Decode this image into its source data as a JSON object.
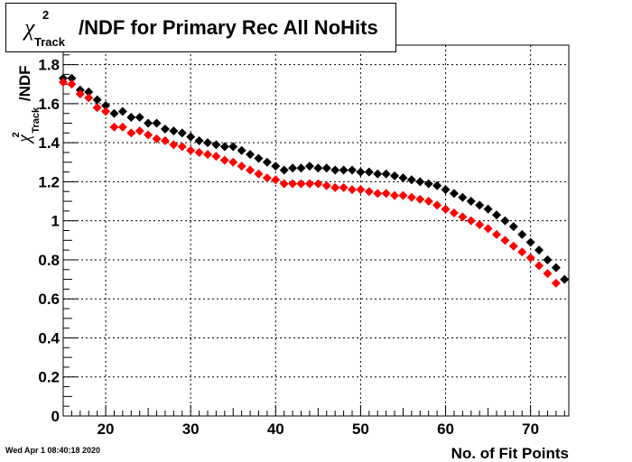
{
  "title": {
    "symbol": "χ",
    "superscript": "2",
    "subscript": "Track",
    "text": "/NDF for Primary Rec All NoHits"
  },
  "timestamp": "Wed Apr  1 08:40:18 2020",
  "chart_data": {
    "type": "scatter",
    "xlabel": "No. of Fit Points",
    "ylabel": {
      "symbol": "χ",
      "superscript": "2",
      "subscript": "Track",
      "text": "/NDF"
    },
    "xlim": [
      15,
      74.5
    ],
    "ylim": [
      0,
      1.9
    ],
    "x_ticks": [
      20,
      30,
      40,
      50,
      60,
      70
    ],
    "y_ticks": [
      0,
      0.2,
      0.4,
      0.6,
      0.8,
      1,
      1.2,
      1.4,
      1.6,
      1.8
    ],
    "y_tick_labels": [
      "0",
      "0.2",
      "0.4",
      "0.6",
      "0.8",
      "1",
      "1.2",
      "1.4",
      "1.6",
      "1.8"
    ],
    "grid": true,
    "series": [
      {
        "color": "#000000",
        "x": [
          15,
          16,
          17,
          18,
          19,
          20,
          21,
          22,
          23,
          24,
          25,
          26,
          27,
          28,
          29,
          30,
          31,
          32,
          33,
          34,
          35,
          36,
          37,
          38,
          39,
          40,
          41,
          42,
          43,
          44,
          45,
          46,
          47,
          48,
          49,
          50,
          51,
          52,
          53,
          54,
          55,
          56,
          57,
          58,
          59,
          60,
          61,
          62,
          63,
          64,
          65,
          66,
          67,
          68,
          69,
          70,
          71,
          72,
          73,
          74
        ],
        "y": [
          1.73,
          1.73,
          1.67,
          1.66,
          1.62,
          1.59,
          1.55,
          1.56,
          1.53,
          1.53,
          1.5,
          1.5,
          1.47,
          1.46,
          1.45,
          1.43,
          1.41,
          1.4,
          1.39,
          1.38,
          1.38,
          1.36,
          1.34,
          1.32,
          1.3,
          1.28,
          1.26,
          1.27,
          1.27,
          1.28,
          1.27,
          1.27,
          1.26,
          1.26,
          1.26,
          1.25,
          1.25,
          1.24,
          1.24,
          1.23,
          1.22,
          1.21,
          1.2,
          1.19,
          1.18,
          1.16,
          1.14,
          1.12,
          1.1,
          1.08,
          1.06,
          1.03,
          1.0,
          0.97,
          0.93,
          0.89,
          0.85,
          0.8,
          0.76,
          0.7
        ]
      },
      {
        "color": "#ff0000",
        "x": [
          15,
          16,
          17,
          18,
          19,
          20,
          21,
          22,
          23,
          24,
          25,
          26,
          27,
          28,
          29,
          30,
          31,
          32,
          33,
          34,
          35,
          36,
          37,
          38,
          39,
          40,
          41,
          42,
          43,
          44,
          45,
          46,
          47,
          48,
          49,
          50,
          51,
          52,
          53,
          54,
          55,
          56,
          57,
          58,
          59,
          60,
          61,
          62,
          63,
          64,
          65,
          66,
          67,
          68,
          69,
          70,
          71,
          72,
          73
        ],
        "y": [
          1.71,
          1.7,
          1.65,
          1.63,
          1.58,
          1.56,
          1.48,
          1.48,
          1.45,
          1.46,
          1.44,
          1.42,
          1.41,
          1.39,
          1.38,
          1.36,
          1.35,
          1.34,
          1.33,
          1.31,
          1.3,
          1.28,
          1.26,
          1.24,
          1.22,
          1.21,
          1.19,
          1.19,
          1.19,
          1.19,
          1.19,
          1.18,
          1.17,
          1.17,
          1.16,
          1.16,
          1.15,
          1.14,
          1.14,
          1.13,
          1.13,
          1.12,
          1.11,
          1.1,
          1.08,
          1.06,
          1.04,
          1.02,
          1.0,
          0.98,
          0.96,
          0.93,
          0.9,
          0.87,
          0.84,
          0.81,
          0.77,
          0.73,
          0.68
        ]
      }
    ]
  }
}
